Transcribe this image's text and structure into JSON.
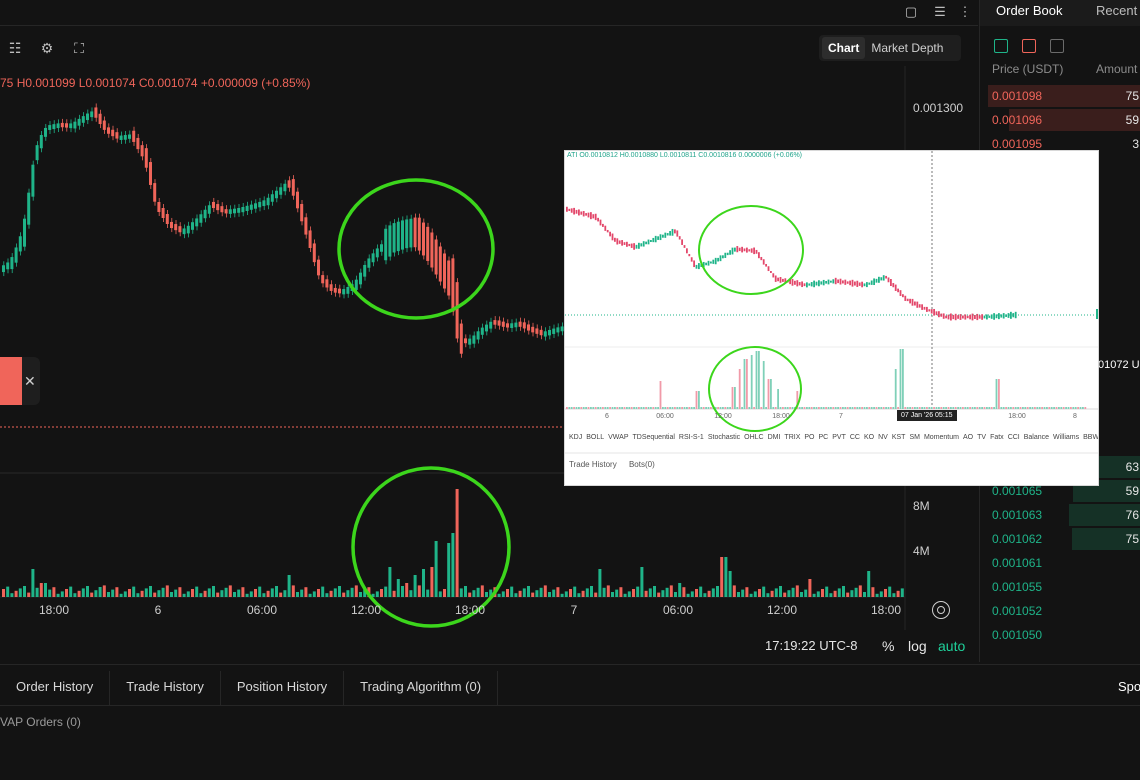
{
  "top_bar": {
    "icons": [
      "square-icon",
      "sliders-icon",
      "more-vertical-icon"
    ]
  },
  "toolbar": {
    "icons": [
      "list-check-icon",
      "settings-icon",
      "fullscreen-icon"
    ],
    "view_chart": "Chart",
    "view_depth": "Market Depth"
  },
  "ohlc": {
    "open_fragment": "75",
    "high": "H0.001099",
    "low": "L0.001074",
    "close": "C0.001074",
    "change": "+0.000009 (+0.85%)"
  },
  "price_axis": {
    "top_label": "0.001300",
    "vol_8m": "8M",
    "vol_4m": "4M"
  },
  "x_axis": [
    "18:00",
    "6",
    "06:00",
    "12:00",
    "18:00",
    "7",
    "06:00",
    "12:00",
    "18:00"
  ],
  "footer": {
    "clock": "17:19:22 UTC-8",
    "percent": "%",
    "log": "log",
    "auto": "auto"
  },
  "side_tag": {
    "close": "✕"
  },
  "order_book": {
    "tab_active": "Order Book",
    "tab_other": "Recent",
    "col_price": "Price (USDT)",
    "col_amount": "Amount",
    "asks": [
      {
        "price": "0.001098",
        "amount": "75",
        "depth": 0.95
      },
      {
        "price": "0.001096",
        "amount": "59",
        "depth": 0.82
      },
      {
        "price": "0.001095",
        "amount": "3",
        "depth": 0.0
      }
    ],
    "bids": [
      {
        "price": "",
        "amount": "63",
        "depth": 0.5
      },
      {
        "price": "0.001065",
        "amount": "59",
        "depth": 0.42
      },
      {
        "price": "0.001063",
        "amount": "76",
        "depth": 0.45
      },
      {
        "price": "0.001062",
        "amount": "75",
        "depth": 0.43
      },
      {
        "price": "0.001061",
        "amount": "",
        "depth": 0.0
      },
      {
        "price": "0.001055",
        "amount": "",
        "depth": 0.0
      },
      {
        "price": "0.001052",
        "amount": "",
        "depth": 0.0
      },
      {
        "price": "0.001050",
        "amount": "",
        "depth": 0.0
      }
    ],
    "mid_price_fragment": "01072 U"
  },
  "bottom": {
    "tabs": [
      "Order History",
      "Trade History",
      "Position History",
      "Trading Algorithm (0)"
    ],
    "spot_label": "Spo",
    "sub_label": "VAP Orders (0)"
  },
  "inset": {
    "ohlc": "ATI   O0.0010812  H0.0010880  L0.0010811  C0.0010816  0.0000006 (+0.06%)",
    "x_labels": [
      "6",
      "06:00",
      "12:00",
      "18:00",
      "7",
      "18:00",
      "8"
    ],
    "time_tag": "07 Jan '26   05:15",
    "indicators": [
      "KDJ",
      "BOLL",
      "VWAP",
      "TDSequential",
      "RSI-S-1",
      "Stochastic",
      "OHLC",
      "DMI",
      "TRIX",
      "PO",
      "PC",
      "PVT",
      "CC",
      "KO",
      "NV",
      "KST",
      "SM",
      "Momentum",
      "AO",
      "TV",
      "Fatx",
      "CCI",
      "Balance",
      "Williams",
      "BBW",
      "A"
    ],
    "tabs": [
      "Trade History",
      "Bots(0)"
    ]
  },
  "colors": {
    "up": "#1fb489",
    "down": "#f0655a",
    "highlight_circle": "#3cd61c",
    "background": "#131313"
  }
}
